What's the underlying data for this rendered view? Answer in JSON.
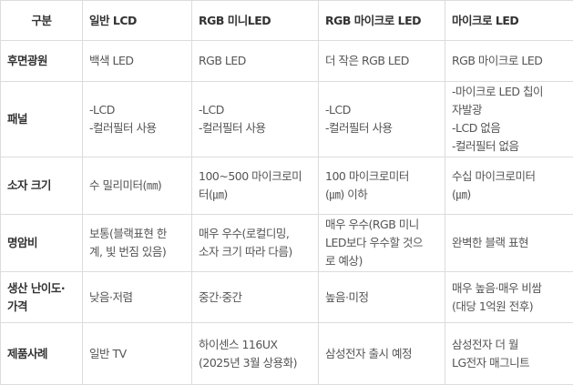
{
  "table": {
    "headers": [
      "구분",
      "일반 LCD",
      "RGB 미니LED",
      "RGB 마이크로 LED",
      "마이크로 LED"
    ],
    "rows": [
      [
        "후면광원",
        "백색 LED",
        "RGB LED",
        "더 작은 RGB LED",
        "RGB 마이크로 LED"
      ],
      [
        "패널",
        "-LCD\n-컬러필터 사용",
        "-LCD\n-컬러필터 사용",
        "-LCD\n-컬러필터 사용",
        "-마이크로 LED 칩이\n자발광\n-LCD 없음\n-컬러필터 없음"
      ],
      [
        "소자 크기",
        "수 밀리미터(㎜)",
        "100~500 마이크로미\n터(㎛)",
        "100 마이크로미터\n(㎛) 이하",
        "수십 마이크로미터\n(㎛)"
      ],
      [
        "명암비",
        "보통(블랙표현 한\n계, 빛 번짐 있음)",
        "매우 우수(로컬디밍,\n소자 크기 따라 다름)",
        "매우 우수(RGB 미니\nLED보다 우수할 것으\n로 예상)",
        "완벽한 블랙 표현"
      ],
      [
        "생산 난이도·\n가격",
        "낮음·저렴",
        "중간·중간",
        "높음·미정",
        "매우 높음·매우 비쌈\n(대당 1억원 전후)"
      ],
      [
        "제품사례",
        "일반 TV",
        "하이센스 116UX\n(2025년 3월 상용화)",
        "삼성전자 출시 예정",
        "삼성전자 더 월\nLG전자 매그니트"
      ]
    ]
  }
}
